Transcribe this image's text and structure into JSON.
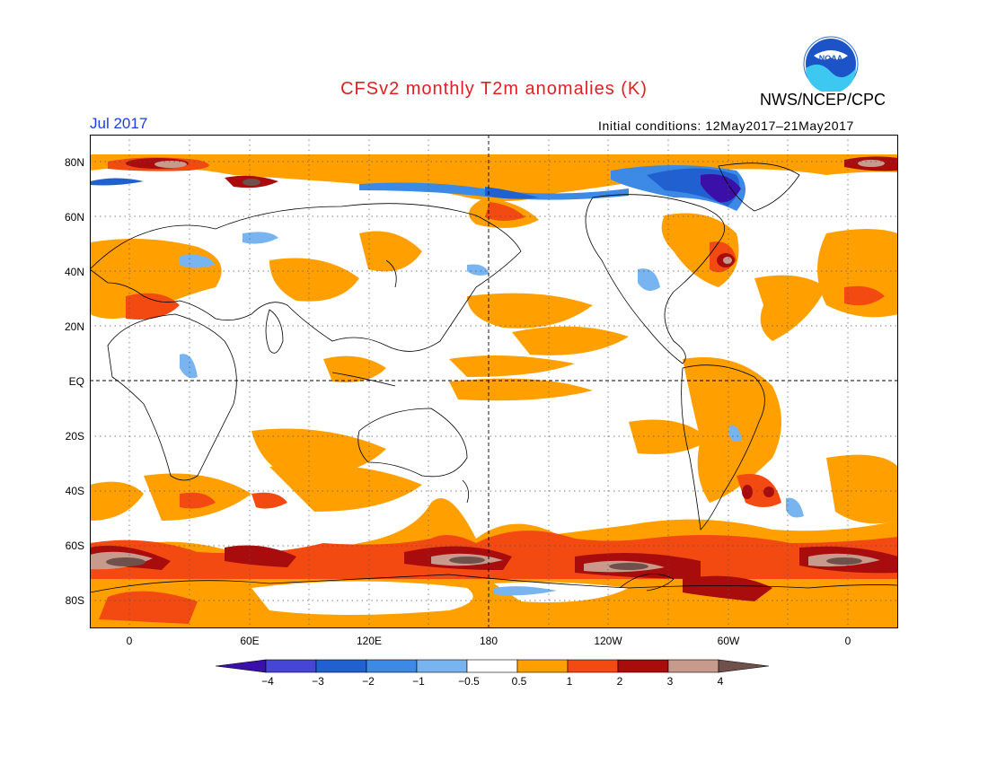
{
  "header": {
    "title": "CFSv2 monthly T2m anomalies (K)",
    "agency": "NWS/NCEP/CPC",
    "logo_text": "NOAA",
    "month": "Jul 2017",
    "init_conditions": "Initial conditions: 12May2017–21May2017"
  },
  "axes": {
    "lat_labels": [
      "80N",
      "60N",
      "40N",
      "20N",
      "EQ",
      "20S",
      "40S",
      "60S",
      "80S"
    ],
    "lon_labels": [
      "0",
      "60E",
      "120E",
      "180",
      "120W",
      "60W",
      "0"
    ]
  },
  "colorbar": {
    "labels": [
      "−4",
      "−3",
      "−2",
      "−1",
      "−0.5",
      "0.5",
      "1",
      "2",
      "3",
      "4"
    ],
    "colors": [
      "#3a10a8",
      "#4646d6",
      "#2060d0",
      "#3c8ae6",
      "#78b4f0",
      "#ffffff",
      "#ffa000",
      "#f24a10",
      "#a80c0c",
      "#c89a8c",
      "#70504a"
    ]
  },
  "colors": {
    "title": "#e02020",
    "month": "#1a3fdc",
    "weak_warm": "#ffa000",
    "warm": "#f24a10",
    "hot": "#a80c0c",
    "very_hot": "#c89a8c",
    "extreme_hot": "#70504a",
    "weak_cool": "#78b4f0",
    "cool": "#3c8ae6",
    "cold": "#2060d0",
    "very_cold": "#4646d6"
  }
}
